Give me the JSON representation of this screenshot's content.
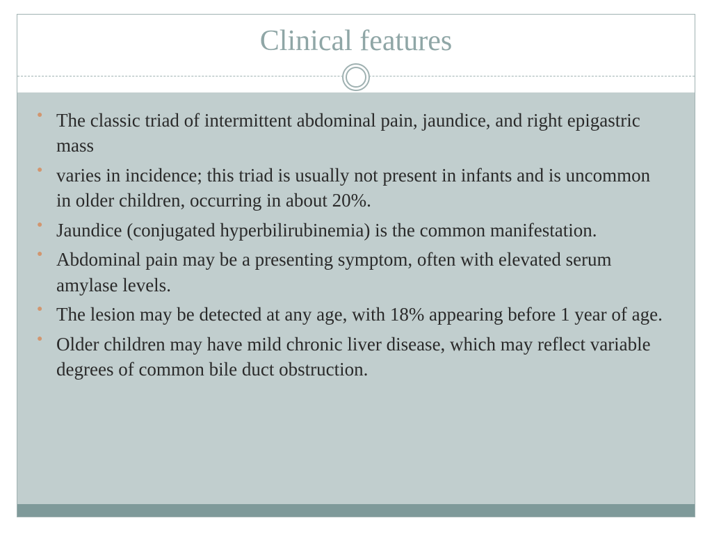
{
  "slide": {
    "title": "Clinical features",
    "bullets": [
      "The classic triad of intermittent abdominal pain, jaundice, and right epigastric  mass",
      "varies in incidence; this triad is usually not present in infants and is uncommon in older children, occurring in about 20%.",
      "Jaundice (conjugated hyperbilirubinemia)  is the common manifestation.",
      "Abdominal pain may be a presenting symptom, often with elevated serum amylase levels.",
      "The lesion may be detected at any age, with 18% appearing before 1 year of age.",
      "Older children may have mild chronic liver disease, which may reflect variable degrees of common bile duct obstruction."
    ],
    "colors": {
      "title_color": "#8fa6a6",
      "body_bg": "#c1cece",
      "bullet_color": "#d2966f",
      "footer_bar": "#7f9a9a",
      "frame_border": "#9fb1b1",
      "text_color": "#2a2a2a"
    },
    "title_fontsize": 42,
    "body_fontsize": 27
  }
}
